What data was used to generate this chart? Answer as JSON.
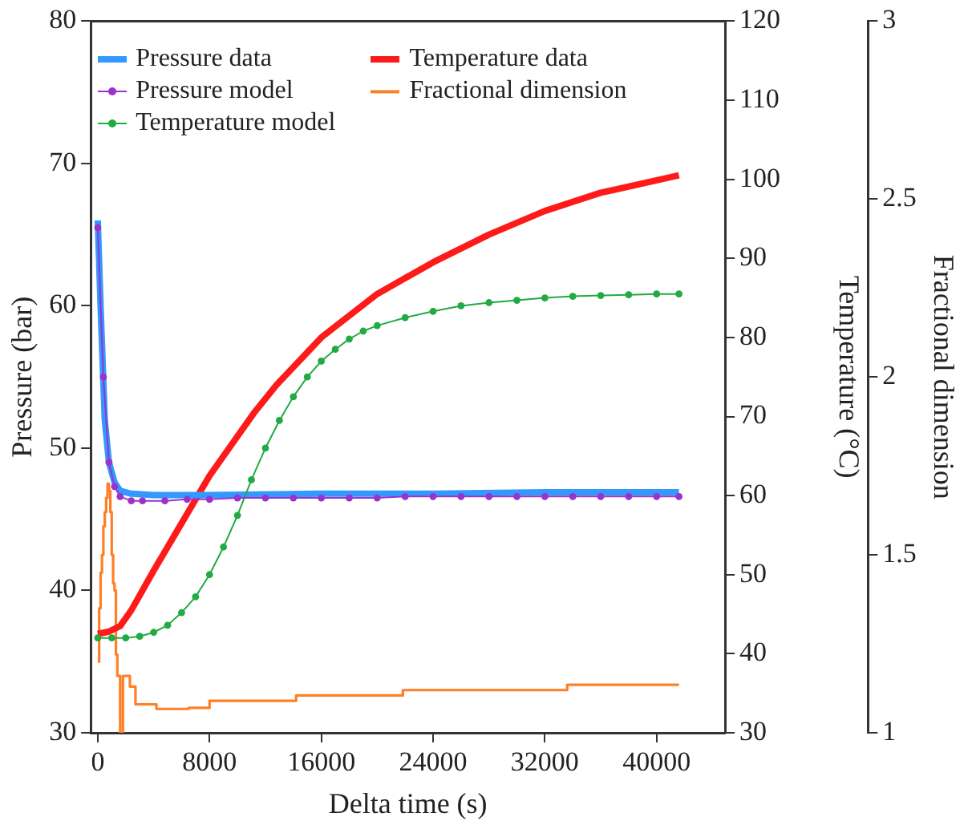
{
  "chart_data": {
    "type": "line",
    "xlabel": "Delta time (s)",
    "ylabel": "Pressure (bar)",
    "y2label": "Temperature (°C)",
    "y3label": "Fractional dimension",
    "xlim": [
      -500,
      44900
    ],
    "xticks": [
      0,
      8000,
      16000,
      24000,
      32000,
      40000
    ],
    "ylim": [
      30,
      80
    ],
    "yticks": [
      30,
      40,
      50,
      60,
      70,
      80
    ],
    "y2lim": [
      30,
      120
    ],
    "y2ticks": [
      30,
      40,
      50,
      60,
      70,
      80,
      90,
      100,
      110,
      120
    ],
    "y3lim": [
      1,
      3
    ],
    "y3ticks": [
      1,
      {
        "value": 1.5,
        "label": "1.5"
      },
      2,
      {
        "value": 2.5,
        "label": "2.5"
      },
      3
    ],
    "grid": false,
    "legend": "top left",
    "series": [
      {
        "name": "Pressure data",
        "color": "#3399ff",
        "marker": "none",
        "x": [
          0,
          200,
          500,
          800,
          1200,
          1600,
          2400,
          4000,
          8000,
          16000,
          24000,
          32000,
          41600
        ],
        "values": [
          66,
          60,
          52,
          49,
          47.6,
          47,
          46.8,
          46.7,
          46.7,
          46.8,
          46.8,
          46.9,
          46.9
        ]
      },
      {
        "name": "Temperature data",
        "color": "#ff1a1a",
        "marker": "none",
        "axis": "y2",
        "x": [
          0,
          800,
          1600,
          2400,
          3200,
          4000,
          5000,
          6000,
          7000,
          8000,
          9600,
          11200,
          12800,
          14400,
          16000,
          20000,
          24000,
          28000,
          32000,
          36000,
          41600
        ],
        "values": [
          42.5,
          42.8,
          43.5,
          45.5,
          48,
          50.5,
          53.5,
          56.5,
          59.5,
          62.5,
          66.5,
          70.5,
          74,
          77,
          80,
          85.5,
          89.5,
          93,
          96,
          98.3,
          100.5
        ]
      },
      {
        "name": "Pressure model",
        "color": "#9933cc",
        "marker": "circle",
        "x": [
          0,
          400,
          800,
          1200,
          1600,
          2400,
          3200,
          4800,
          6400,
          8000,
          10000,
          12000,
          14000,
          16000,
          18000,
          20000,
          22000,
          24000,
          26000,
          28000,
          30000,
          32000,
          34000,
          36000,
          38000,
          40000,
          41600
        ],
        "values": [
          65.5,
          55,
          49,
          47.3,
          46.6,
          46.3,
          46.3,
          46.3,
          46.4,
          46.4,
          46.5,
          46.5,
          46.5,
          46.5,
          46.5,
          46.5,
          46.6,
          46.6,
          46.6,
          46.6,
          46.6,
          46.6,
          46.6,
          46.6,
          46.6,
          46.6,
          46.6
        ]
      },
      {
        "name": "Fractional dimension",
        "color": "#ff7f27",
        "marker": "none",
        "axis": "y3",
        "type": "step",
        "x": [
          0,
          100,
          200,
          300,
          400,
          500,
          600,
          700,
          800,
          900,
          1000,
          1100,
          1200,
          1300,
          1400,
          1600,
          1800,
          2300,
          2700,
          3400,
          4200,
          6500,
          8000,
          14200,
          21840,
          33600,
          41600
        ],
        "values": [
          1.2,
          1.35,
          1.45,
          1.5,
          1.58,
          1.62,
          1.66,
          1.7,
          1.68,
          1.62,
          1.5,
          1.42,
          1.4,
          1.22,
          1.16,
          1,
          1.16,
          1.13,
          1.08,
          1.08,
          1.067,
          1.07,
          1.09,
          1.105,
          1.12,
          1.135,
          1.135
        ]
      },
      {
        "name": "Temperature model",
        "color": "#22aa44",
        "marker": "circle",
        "axis": "y2",
        "x": [
          0,
          1000,
          2000,
          3000,
          4000,
          5000,
          6000,
          7000,
          8000,
          9000,
          10000,
          11000,
          12000,
          13000,
          14000,
          15000,
          16000,
          17000,
          18000,
          19000,
          20000,
          22000,
          24000,
          26000,
          28000,
          30000,
          32000,
          34000,
          36000,
          38000,
          40000,
          41600
        ],
        "values": [
          42,
          42,
          42,
          42.2,
          42.7,
          43.6,
          45.2,
          47.2,
          50,
          53.5,
          57.5,
          62,
          66,
          69.5,
          72.5,
          75,
          77,
          78.5,
          79.8,
          80.8,
          81.5,
          82.5,
          83.3,
          84,
          84.4,
          84.7,
          85,
          85.2,
          85.3,
          85.4,
          85.5,
          85.5
        ]
      }
    ]
  }
}
